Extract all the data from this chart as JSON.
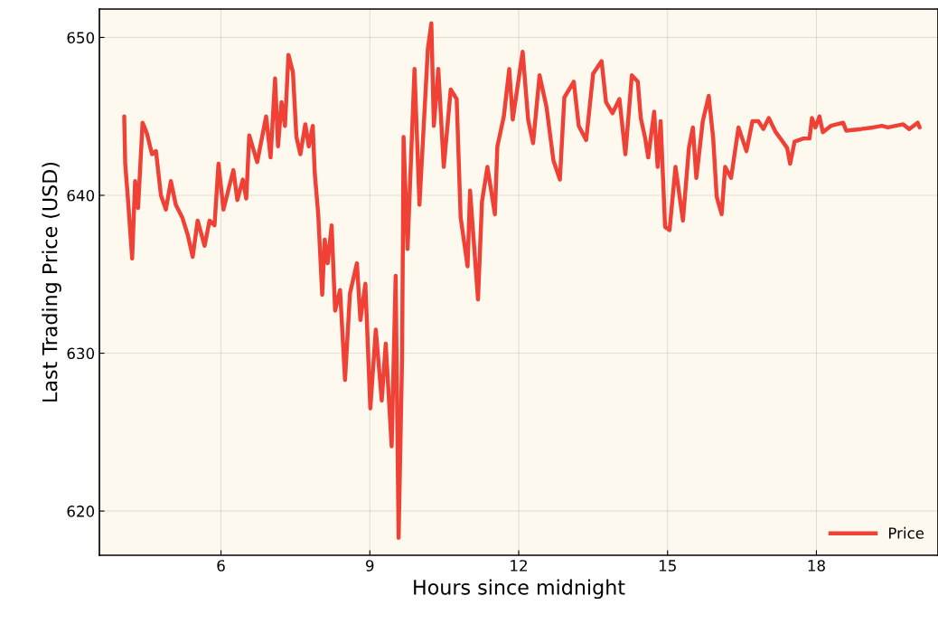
{
  "chart_data": {
    "type": "line",
    "xlabel": "Hours since midnight",
    "ylabel": "Last Trading Price (USD)",
    "xlim": [
      3.55,
      20.45
    ],
    "ylim": [
      617.2,
      651.8
    ],
    "xticks": [
      6,
      9,
      12,
      15,
      18
    ],
    "yticks": [
      620,
      630,
      640,
      650
    ],
    "grid": true,
    "legend": "bottom right",
    "marker": "none",
    "line_style": "solid",
    "series": [
      {
        "name": "Price",
        "color": "#ef4136",
        "x": [
          4.05,
          4.07,
          4.12,
          4.21,
          4.27,
          4.33,
          4.42,
          4.51,
          4.61,
          4.69,
          4.79,
          4.89,
          4.99,
          5.09,
          5.22,
          5.33,
          5.43,
          5.53,
          5.67,
          5.77,
          5.87,
          5.95,
          6.05,
          6.25,
          6.33,
          6.44,
          6.51,
          6.57,
          6.73,
          6.91,
          7.0,
          7.09,
          7.15,
          7.22,
          7.29,
          7.36,
          7.45,
          7.52,
          7.6,
          7.7,
          7.77,
          7.85,
          7.89,
          7.96,
          8.04,
          8.09,
          8.15,
          8.23,
          8.3,
          8.4,
          8.5,
          8.6,
          8.74,
          8.81,
          8.91,
          9.01,
          9.12,
          9.24,
          9.32,
          9.44,
          9.52,
          9.58,
          9.65,
          9.68,
          9.76,
          9.9,
          10.0,
          10.17,
          10.24,
          10.29,
          10.38,
          10.49,
          10.63,
          10.75,
          10.83,
          10.97,
          11.02,
          11.18,
          11.26,
          11.37,
          11.52,
          11.57,
          11.7,
          11.81,
          11.88,
          12.08,
          12.19,
          12.29,
          12.42,
          12.56,
          12.7,
          12.83,
          12.92,
          13.11,
          13.21,
          13.36,
          13.5,
          13.67,
          13.76,
          13.89,
          14.03,
          14.15,
          14.28,
          14.4,
          14.46,
          14.55,
          14.61,
          14.73,
          14.8,
          14.86,
          14.95,
          15.04,
          15.16,
          15.31,
          15.43,
          15.51,
          15.58,
          15.71,
          15.83,
          15.92,
          15.99,
          16.09,
          16.16,
          16.28,
          16.43,
          16.59,
          16.71,
          16.83,
          16.93,
          17.04,
          17.18,
          17.32,
          17.41,
          17.47,
          17.56,
          17.74,
          17.86,
          17.91,
          17.98,
          18.06,
          18.13,
          18.29,
          18.54,
          18.6,
          18.9,
          19.14,
          19.32,
          19.44,
          19.75,
          19.87,
          20.04,
          20.08
        ],
        "values": [
          645.0,
          642.0,
          640.0,
          636.0,
          640.9,
          639.2,
          644.6,
          643.9,
          642.6,
          642.8,
          640.0,
          639.1,
          640.9,
          639.4,
          638.6,
          637.5,
          636.1,
          638.4,
          636.8,
          638.4,
          638.1,
          642.0,
          639.1,
          641.6,
          639.7,
          641.0,
          639.8,
          643.8,
          642.1,
          645.0,
          642.4,
          647.4,
          643.1,
          645.9,
          644.4,
          648.9,
          647.8,
          643.7,
          642.6,
          644.5,
          643.1,
          644.4,
          641.4,
          638.8,
          633.7,
          637.2,
          635.7,
          638.1,
          632.7,
          634.0,
          628.3,
          633.8,
          635.7,
          632.1,
          634.4,
          626.5,
          631.5,
          627.0,
          630.6,
          624.1,
          634.9,
          618.3,
          629.7,
          643.7,
          636.6,
          648.0,
          639.4,
          649.3,
          650.9,
          644.4,
          648.0,
          641.8,
          646.7,
          646.1,
          638.6,
          635.5,
          640.3,
          633.4,
          639.6,
          641.8,
          638.8,
          643.1,
          645.0,
          648.0,
          644.8,
          649.1,
          644.8,
          643.3,
          647.6,
          645.6,
          642.2,
          641.0,
          646.2,
          647.2,
          644.4,
          643.5,
          647.7,
          648.5,
          645.9,
          645.2,
          646.1,
          642.6,
          647.6,
          647.2,
          644.9,
          643.6,
          642.4,
          645.3,
          641.8,
          644.7,
          638.0,
          637.8,
          641.8,
          638.4,
          643.0,
          644.3,
          641.1,
          644.7,
          646.3,
          643.6,
          639.9,
          638.8,
          641.8,
          641.1,
          644.3,
          642.8,
          644.7,
          644.7,
          644.2,
          644.9,
          644.0,
          643.4,
          643.0,
          642.0,
          643.4,
          643.6,
          643.6,
          644.9,
          644.3,
          645.0,
          644.0,
          644.4,
          644.6,
          644.1,
          644.2,
          644.3,
          644.4,
          644.3,
          644.5,
          644.2,
          644.6,
          644.3
        ]
      }
    ]
  }
}
